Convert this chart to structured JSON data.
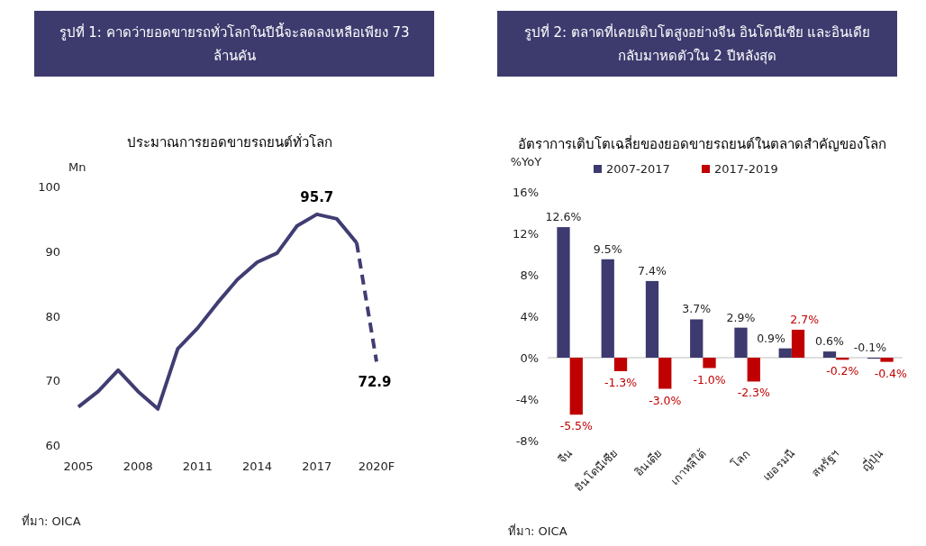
{
  "chart_data": [
    {
      "type": "line",
      "title": "รูปที่ 1: คาดว่ายอดขายรถทั่วโลกในปีนี้จะลดลงเหลือเพียง 73 ล้านคัน",
      "subtitle": "ประมาณการยอดขายรถยนต์ทั่วโลก",
      "ylabel": "Mn",
      "series": [
        {
          "color": "#3f3d72",
          "x": [
            2005,
            2006,
            2007,
            2008,
            2009,
            2010,
            2011,
            2012,
            2013,
            2014,
            2015,
            2016,
            2017,
            2018,
            2019
          ],
          "values": [
            65.9,
            68.3,
            71.6,
            68.3,
            65.6,
            74.9,
            78.1,
            82.0,
            85.6,
            88.3,
            89.7,
            93.9,
            95.7,
            95.0,
            91.3
          ],
          "line_style": "solid"
        },
        {
          "color": "#3f3d72",
          "x": [
            2019,
            2020
          ],
          "values": [
            91.3,
            72.9
          ],
          "line_style": "dashed"
        }
      ],
      "xlim": [
        2005,
        2020
      ],
      "ylim": [
        60,
        100
      ],
      "xticks": [
        2005,
        2008,
        2011,
        2014,
        2017,
        {
          "value": 2020,
          "label": "2020F"
        }
      ],
      "yticks": [
        60,
        70,
        80,
        90,
        100
      ],
      "annotations": [
        {
          "text": "95.7",
          "x": 2017,
          "y": 95.7
        },
        {
          "text": "72.9",
          "x": 2020,
          "y": 72.9
        },
        "ที่มา: OICA"
      ]
    },
    {
      "type": "bar",
      "title": "รูปที่ 2: ตลาดที่เคยเติบโตสูงอย่างจีน อินโดนีเซีย และอินเดีย กลับมาหดตัวใน 2 ปีหลังสุด",
      "subtitle": "อัตราการเติบโตเฉลี่ยของยอดขายรถยนต์ในตลาดสำคัญของโลก",
      "ylabel": "%YoY",
      "categories": [
        "จีน",
        "อินโดนีเซีย",
        "อินเดีย",
        "เกาหลีใต้",
        "โลก",
        "เยอรมนี",
        "สหรัฐฯ",
        "ญี่ปุ่น"
      ],
      "series": [
        {
          "name": "2007-2017",
          "color": "#3c3a6e",
          "values": [
            12.6,
            9.5,
            7.4,
            3.7,
            2.9,
            0.9,
            0.6,
            -0.1
          ],
          "value_labels": [
            "12.6%",
            "9.5%",
            "7.4%",
            "3.7%",
            "2.9%",
            "0.9%",
            "0.6%",
            "-0.1%"
          ]
        },
        {
          "name": "2017-2019",
          "color": "#c00000",
          "values": [
            -5.5,
            -1.3,
            -3.0,
            -1.0,
            -2.3,
            2.7,
            -0.2,
            -0.4
          ],
          "value_labels": [
            "-5.5%",
            "-1.3%",
            "-3.0%",
            "-1.0%",
            "-2.3%",
            "2.7%",
            "-0.2%",
            "-0.4%"
          ]
        }
      ],
      "ylim": [
        -8,
        16
      ],
      "yticks": [
        {
          "value": -8,
          "label": "-8%"
        },
        {
          "value": -4,
          "label": "-4%"
        },
        {
          "value": 0,
          "label": "0%"
        },
        {
          "value": 4,
          "label": "4%"
        },
        {
          "value": 8,
          "label": "8%"
        },
        {
          "value": 12,
          "label": "12%"
        },
        {
          "value": 16,
          "label": "16%"
        }
      ],
      "legend": "top",
      "annotations": [
        "ที่มา: OICA"
      ]
    }
  ]
}
